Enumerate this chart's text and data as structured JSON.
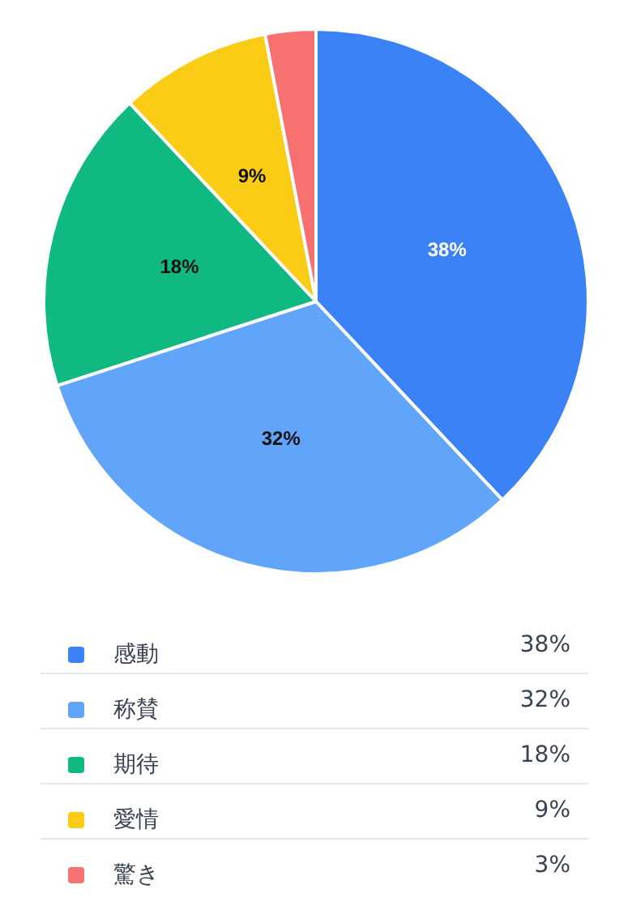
{
  "chart_data": {
    "type": "pie",
    "categories": [
      "感動",
      "称賛",
      "期待",
      "愛情",
      "驚き"
    ],
    "values": [
      38,
      32,
      18,
      9,
      3
    ],
    "value_labels": [
      "38%",
      "32%",
      "18%",
      "9%",
      "3%"
    ],
    "colors": [
      "#3b82f6",
      "#60a5fa",
      "#10b981",
      "#facc15",
      "#f87171"
    ],
    "data_labels": true,
    "legend": "bottom"
  }
}
